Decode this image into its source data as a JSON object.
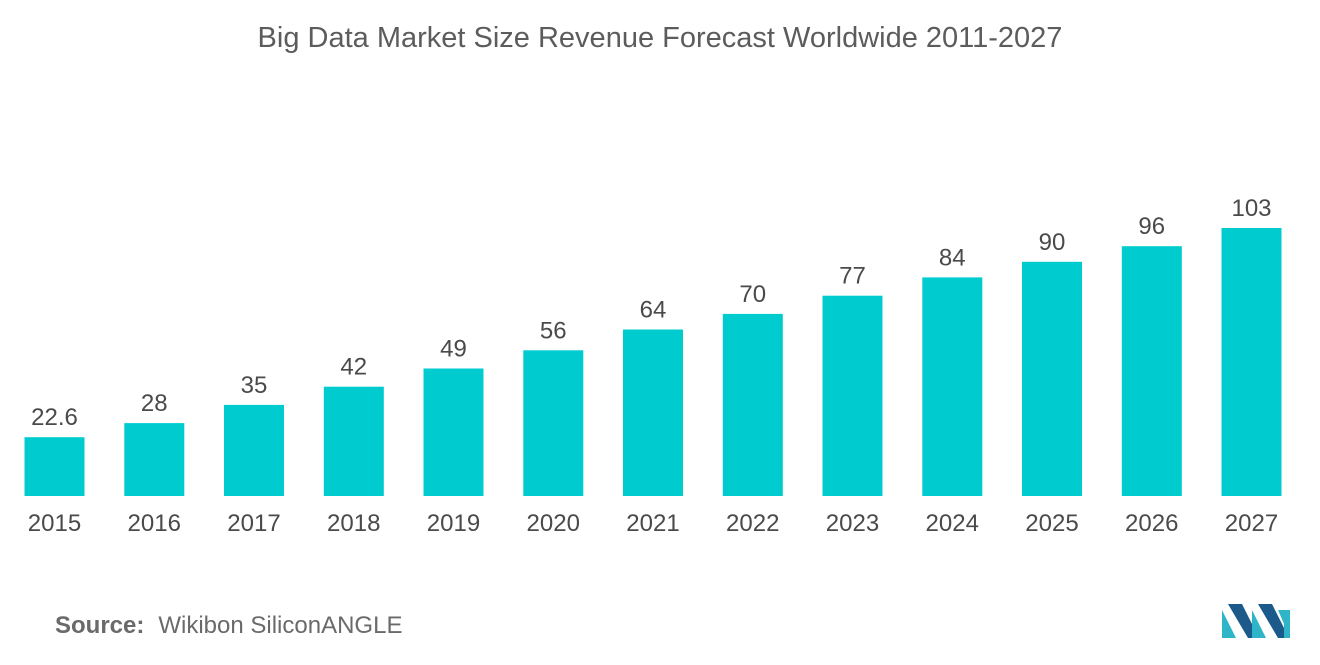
{
  "chart_data": {
    "type": "bar",
    "title": "Big Data Market Size Revenue Forecast Worldwide 2011-2027",
    "categories": [
      "2015",
      "2016",
      "2017",
      "2018",
      "2019",
      "2020",
      "2021",
      "2022",
      "2023",
      "2024",
      "2025",
      "2026",
      "2027"
    ],
    "values": [
      22.6,
      28,
      35,
      42,
      49,
      56,
      64,
      70,
      77,
      84,
      90,
      96,
      103
    ],
    "value_labels": [
      "22.6",
      "28",
      "35",
      "42",
      "49",
      "56",
      "64",
      "70",
      "77",
      "84",
      "90",
      "96",
      "103"
    ],
    "xlabel": "",
    "ylabel": "",
    "ylim": [
      0,
      103
    ],
    "grid": false,
    "legend": "none",
    "bar_color": "#00ccd0"
  },
  "source": {
    "label": "Source:",
    "text": "Wikibon SiliconANGLE"
  },
  "logo": {
    "icon": "mordor-intelligence-logo-icon",
    "colors": [
      "#1b5a8a",
      "#2fb5c8"
    ]
  }
}
